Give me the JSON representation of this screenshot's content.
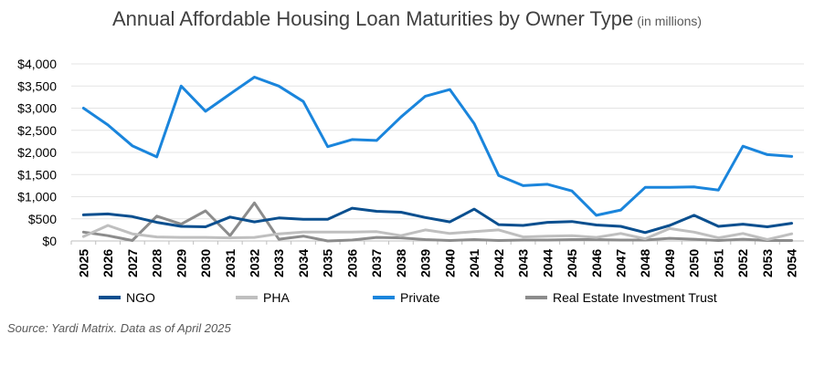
{
  "chart_data": {
    "type": "line",
    "title": "Annual Affordable Housing Loan Maturities by Owner Type",
    "subtitle": "(in millions)",
    "xlabel": "",
    "ylabel": "",
    "ylim": [
      0,
      4000
    ],
    "yticks": [
      0,
      500,
      1000,
      1500,
      2000,
      2500,
      3000,
      3500,
      4000
    ],
    "ytick_labels": [
      "$0",
      "$500",
      "$1,000",
      "$1,500",
      "$2,000",
      "$2,500",
      "$3,000",
      "$3,500",
      "$4,000"
    ],
    "grid": true,
    "legend_position": "bottom",
    "categories": [
      "2025",
      "2026",
      "2027",
      "2028",
      "2029",
      "2030",
      "2031",
      "2032",
      "2033",
      "2034",
      "2035",
      "2036",
      "2037",
      "2038",
      "2039",
      "2040",
      "2041",
      "2042",
      "2043",
      "2044",
      "2045",
      "2046",
      "2047",
      "2048",
      "2049",
      "2050",
      "2051",
      "2052",
      "2053",
      "2054"
    ],
    "series": [
      {
        "name": "NGO",
        "color": "#0a4f8f",
        "values": [
          590,
          610,
          550,
          420,
          330,
          320,
          540,
          430,
          520,
          490,
          490,
          740,
          670,
          650,
          530,
          430,
          720,
          370,
          350,
          420,
          440,
          360,
          330,
          190,
          350,
          580,
          330,
          380,
          320,
          400
        ]
      },
      {
        "name": "PHA",
        "color": "#bfbfbf",
        "values": [
          100,
          350,
          160,
          90,
          80,
          80,
          70,
          80,
          160,
          200,
          200,
          200,
          210,
          120,
          250,
          170,
          210,
          250,
          90,
          110,
          120,
          80,
          170,
          50,
          280,
          200,
          70,
          170,
          30,
          160
        ]
      },
      {
        "name": "Private",
        "color": "#1a85dc",
        "values": [
          3000,
          2620,
          2150,
          1900,
          3500,
          2930,
          3320,
          3700,
          3500,
          3150,
          2130,
          2290,
          2270,
          2800,
          3270,
          3420,
          2650,
          1480,
          1250,
          1280,
          1130,
          580,
          700,
          1210,
          1210,
          1220,
          1150,
          2140,
          1950,
          1910
        ]
      },
      {
        "name": "Real Estate Investment Trust",
        "color": "#8c8c8c",
        "values": [
          200,
          120,
          10,
          560,
          380,
          680,
          120,
          860,
          40,
          110,
          0,
          20,
          80,
          70,
          30,
          10,
          30,
          10,
          20,
          20,
          30,
          30,
          20,
          20,
          60,
          40,
          10,
          40,
          10,
          10
        ]
      }
    ]
  },
  "source": "Source: Yardi Matrix. Data as of April 2025"
}
